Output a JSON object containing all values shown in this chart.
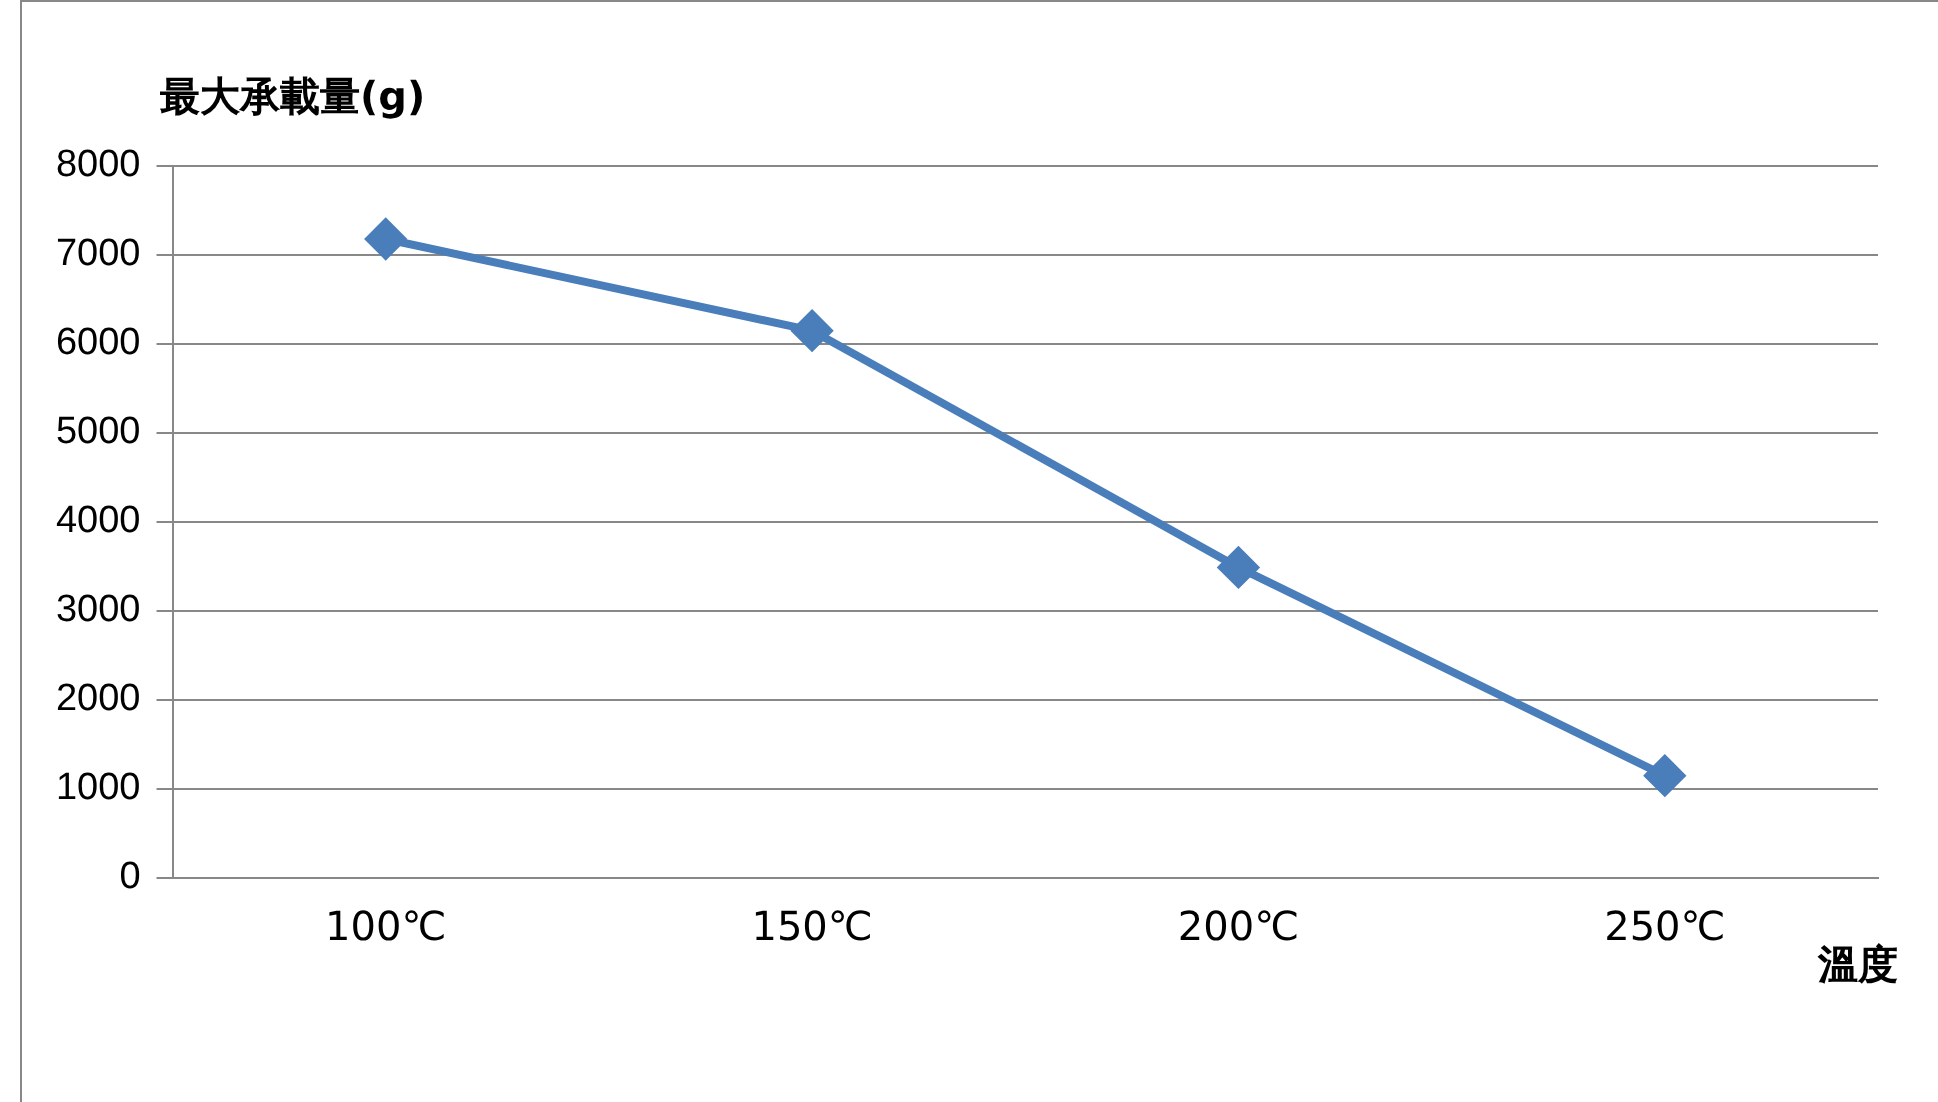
{
  "chart_data": {
    "type": "line",
    "ylabel": "最大承載量(g)",
    "xlabel": "溫度",
    "categories": [
      "100℃",
      "150℃",
      "200℃",
      "250℃"
    ],
    "series": [
      {
        "color": "#4a7ebb",
        "values": [
          7180,
          6150,
          3490,
          1150
        ]
      }
    ],
    "ylim": [
      0,
      8000
    ],
    "yticks": [
      0,
      1000,
      2000,
      3000,
      4000,
      5000,
      6000,
      7000,
      8000
    ],
    "grid": "y",
    "legend": false,
    "marker": "diamond",
    "line_style": "solid"
  }
}
